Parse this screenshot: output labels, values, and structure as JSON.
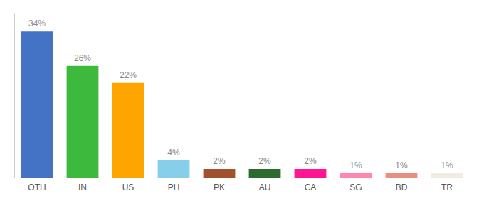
{
  "chart_data": {
    "type": "bar",
    "categories": [
      "OTH",
      "IN",
      "US",
      "PH",
      "PK",
      "AU",
      "CA",
      "SG",
      "BD",
      "TR"
    ],
    "values": [
      34,
      26,
      22,
      4,
      2,
      2,
      2,
      1,
      1,
      1
    ],
    "value_labels": [
      "34%",
      "26%",
      "22%",
      "4%",
      "2%",
      "2%",
      "2%",
      "1%",
      "1%",
      "1%"
    ],
    "colors": [
      "#4472c4",
      "#3dba3d",
      "#ffa500",
      "#87ceeb",
      "#a0522d",
      "#2d6a2d",
      "#ff1493",
      "#ff85b3",
      "#e89080",
      "#f0ede0"
    ],
    "data_labels": true,
    "ylim": [
      0,
      38
    ],
    "tick_labels": "x",
    "grid": false
  }
}
